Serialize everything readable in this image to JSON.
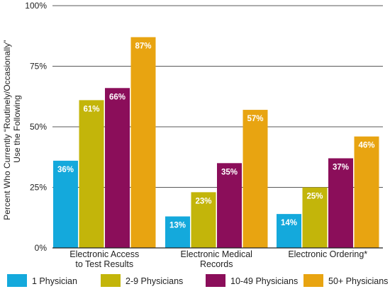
{
  "colors": {
    "series": [
      "#14a9dc",
      "#c3b50a",
      "#8b0e5a",
      "#e8a411"
    ],
    "axis": "#222222",
    "grid": "#222222"
  },
  "chart_data": {
    "type": "bar",
    "categories": [
      [
        "Electronic Access",
        "to Test Results"
      ],
      [
        "Electronic Medical",
        "Records"
      ],
      [
        "Electronic Ordering*"
      ]
    ],
    "series": [
      {
        "name": "1 Physician",
        "values": [
          36,
          13,
          14
        ]
      },
      {
        "name": "2-9 Physicians",
        "values": [
          61,
          23,
          25
        ]
      },
      {
        "name": "10-49 Physicians",
        "values": [
          66,
          35,
          37
        ]
      },
      {
        "name": "50+ Physicians",
        "values": [
          87,
          57,
          46
        ]
      }
    ],
    "value_suffix": "%",
    "ylabel": [
      "Percent Who Currently “Routinely/Occasionally”",
      "Use the Following"
    ],
    "ylim": [
      0,
      100
    ],
    "yticks": [
      "0%",
      "25%",
      "50%",
      "75%",
      "100%"
    ],
    "ytick_values": [
      0,
      25,
      50,
      75,
      100
    ],
    "grid": "horizontal at ticks",
    "legend": "bottom"
  }
}
